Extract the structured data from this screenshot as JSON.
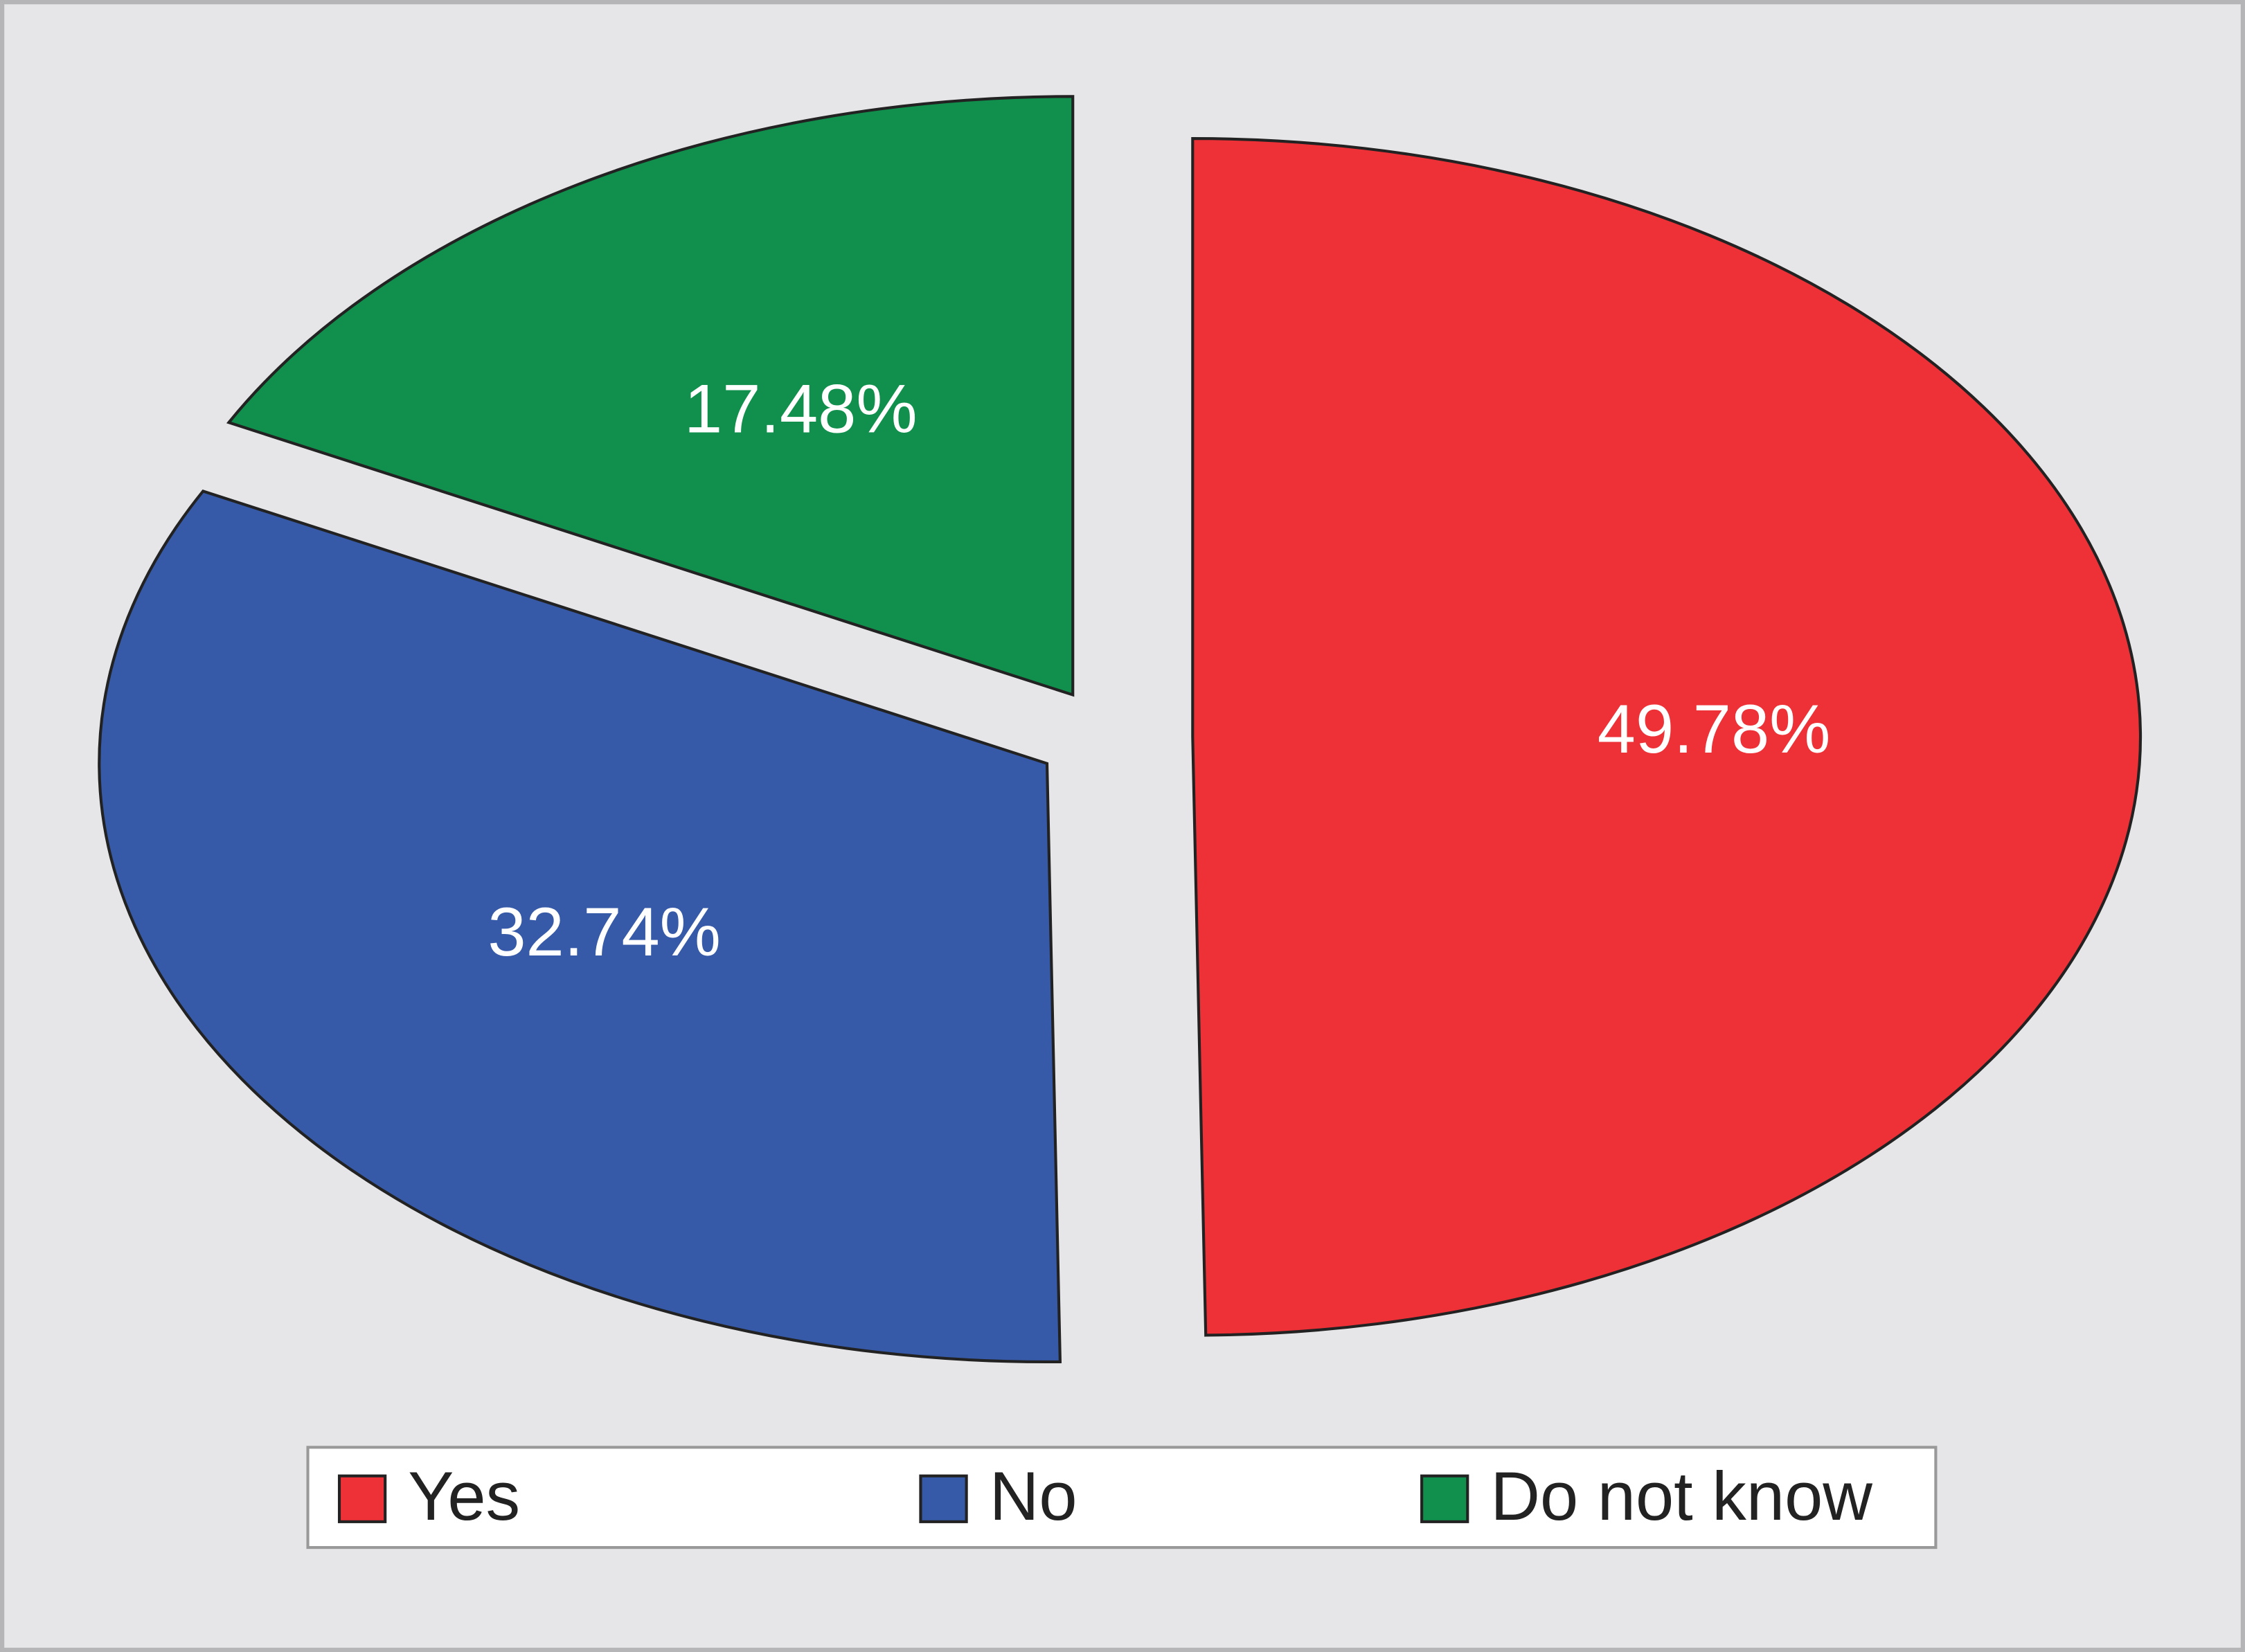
{
  "chart_data": {
    "type": "pie",
    "categories": [
      "Yes",
      "No",
      "Do not know"
    ],
    "values": [
      49.78,
      32.74,
      17.48
    ],
    "value_labels": [
      "49.78%",
      "32.74%",
      "17.48%"
    ],
    "colors": [
      "#ee3137",
      "#365aa8",
      "#10904c"
    ],
    "legend": "bottom"
  }
}
